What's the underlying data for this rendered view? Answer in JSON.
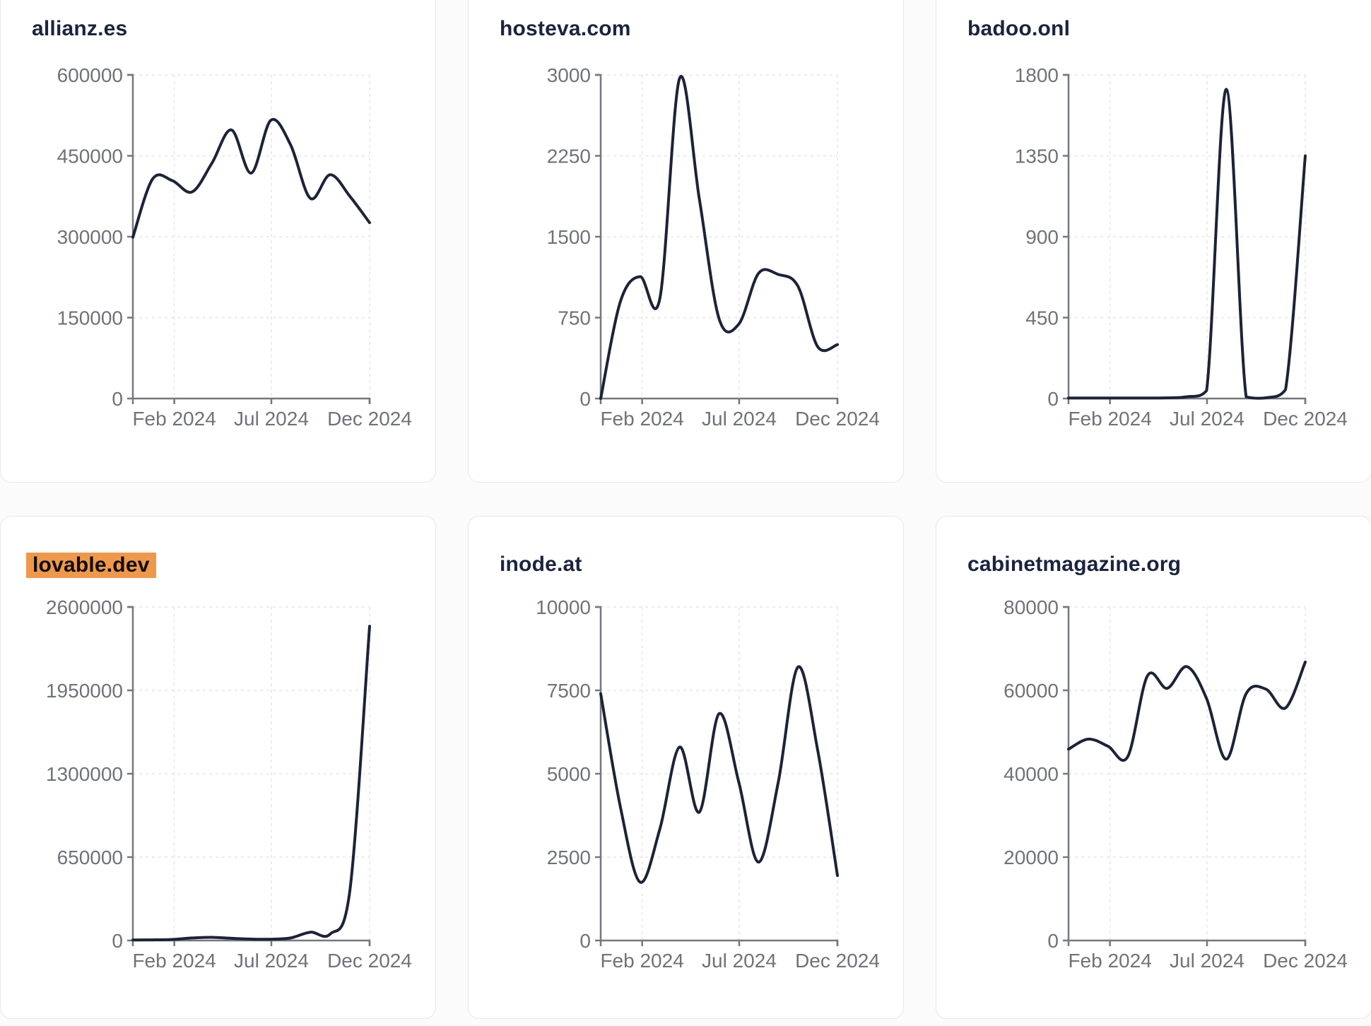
{
  "style": {
    "page_bg": "#fbfbfc",
    "card_bg": "#ffffff",
    "card_border": "#e8e8ec",
    "title_color": "#1b2340",
    "highlight_color": "#f0984a",
    "line_color": "#1c2338",
    "axis_color": "#74787e",
    "tick_label_color": "#6f7378",
    "grid_color": "#e9e9ec"
  },
  "cards": [
    {
      "title": "allianz.es",
      "highlighted": false,
      "chart_data": {
        "type": "line",
        "title": "allianz.es",
        "x_ticks": [
          {
            "pos": 0.175,
            "label": "Feb 2024"
          },
          {
            "pos": 0.585,
            "label": "Jul 2024"
          },
          {
            "pos": 1.0,
            "label": "Dec 2024"
          }
        ],
        "y_ticks": [
          0,
          150000,
          300000,
          450000,
          600000
        ],
        "ylim": [
          0,
          600000
        ],
        "values": [
          299000,
          407000,
          404000,
          383000,
          436000,
          498000,
          418000,
          516000,
          470000,
          371000,
          415000,
          375000,
          326000
        ]
      }
    },
    {
      "title": "hosteva.com",
      "highlighted": false,
      "chart_data": {
        "type": "line",
        "title": "hosteva.com",
        "x_ticks": [
          {
            "pos": 0.175,
            "label": "Feb 2024"
          },
          {
            "pos": 0.585,
            "label": "Jul 2024"
          },
          {
            "pos": 1.0,
            "label": "Dec 2024"
          }
        ],
        "y_ticks": [
          0,
          750,
          1500,
          2250,
          3000
        ],
        "ylim": [
          0,
          3000
        ],
        "values": [
          0,
          900,
          1130,
          930,
          2970,
          1850,
          740,
          690,
          1160,
          1150,
          1040,
          480,
          500
        ]
      }
    },
    {
      "title": "badoo.onl",
      "highlighted": false,
      "chart_data": {
        "type": "line",
        "title": "badoo.onl",
        "x_ticks": [
          {
            "pos": 0.175,
            "label": "Feb 2024"
          },
          {
            "pos": 0.585,
            "label": "Jul 2024"
          },
          {
            "pos": 1.0,
            "label": "Dec 2024"
          }
        ],
        "y_ticks": [
          0,
          450,
          900,
          1350,
          1800
        ],
        "ylim": [
          0,
          1800
        ],
        "values": [
          3,
          3,
          3,
          3,
          3,
          4,
          10,
          45,
          1720,
          10,
          4,
          50,
          1350
        ]
      }
    },
    {
      "title": "lovable.dev",
      "highlighted": true,
      "chart_data": {
        "type": "line",
        "title": "lovable.dev",
        "x_ticks": [
          {
            "pos": 0.175,
            "label": "Feb 2024"
          },
          {
            "pos": 0.585,
            "label": "Jul 2024"
          },
          {
            "pos": 1.0,
            "label": "Dec 2024"
          }
        ],
        "y_ticks": [
          0,
          650000,
          1300000,
          1950000,
          2600000
        ],
        "ylim": [
          0,
          2600000
        ],
        "values": [
          4000,
          5000,
          8000,
          20000,
          25000,
          17000,
          11000,
          10000,
          20000,
          65000,
          50000,
          390000,
          2450000
        ]
      }
    },
    {
      "title": "inode.at",
      "highlighted": false,
      "chart_data": {
        "type": "line",
        "title": "inode.at",
        "x_ticks": [
          {
            "pos": 0.175,
            "label": "Feb 2024"
          },
          {
            "pos": 0.585,
            "label": "Jul 2024"
          },
          {
            "pos": 1.0,
            "label": "Dec 2024"
          }
        ],
        "y_ticks": [
          0,
          2500,
          5000,
          7500,
          10000
        ],
        "ylim": [
          0,
          10000
        ],
        "values": [
          7400,
          4000,
          1750,
          3350,
          5800,
          3850,
          6800,
          4750,
          2350,
          4750,
          8200,
          5700,
          1950
        ]
      }
    },
    {
      "title": "cabinetmagazine.org",
      "highlighted": false,
      "chart_data": {
        "type": "line",
        "title": "cabinetmagazine.org",
        "x_ticks": [
          {
            "pos": 0.175,
            "label": "Feb 2024"
          },
          {
            "pos": 0.585,
            "label": "Jul 2024"
          },
          {
            "pos": 1.0,
            "label": "Dec 2024"
          }
        ],
        "y_ticks": [
          0,
          20000,
          40000,
          60000,
          80000
        ],
        "ylim": [
          0,
          80000
        ],
        "values": [
          45900,
          48300,
          46600,
          44100,
          63500,
          60500,
          65700,
          58000,
          43500,
          59200,
          60300,
          55800,
          66800
        ]
      }
    }
  ]
}
